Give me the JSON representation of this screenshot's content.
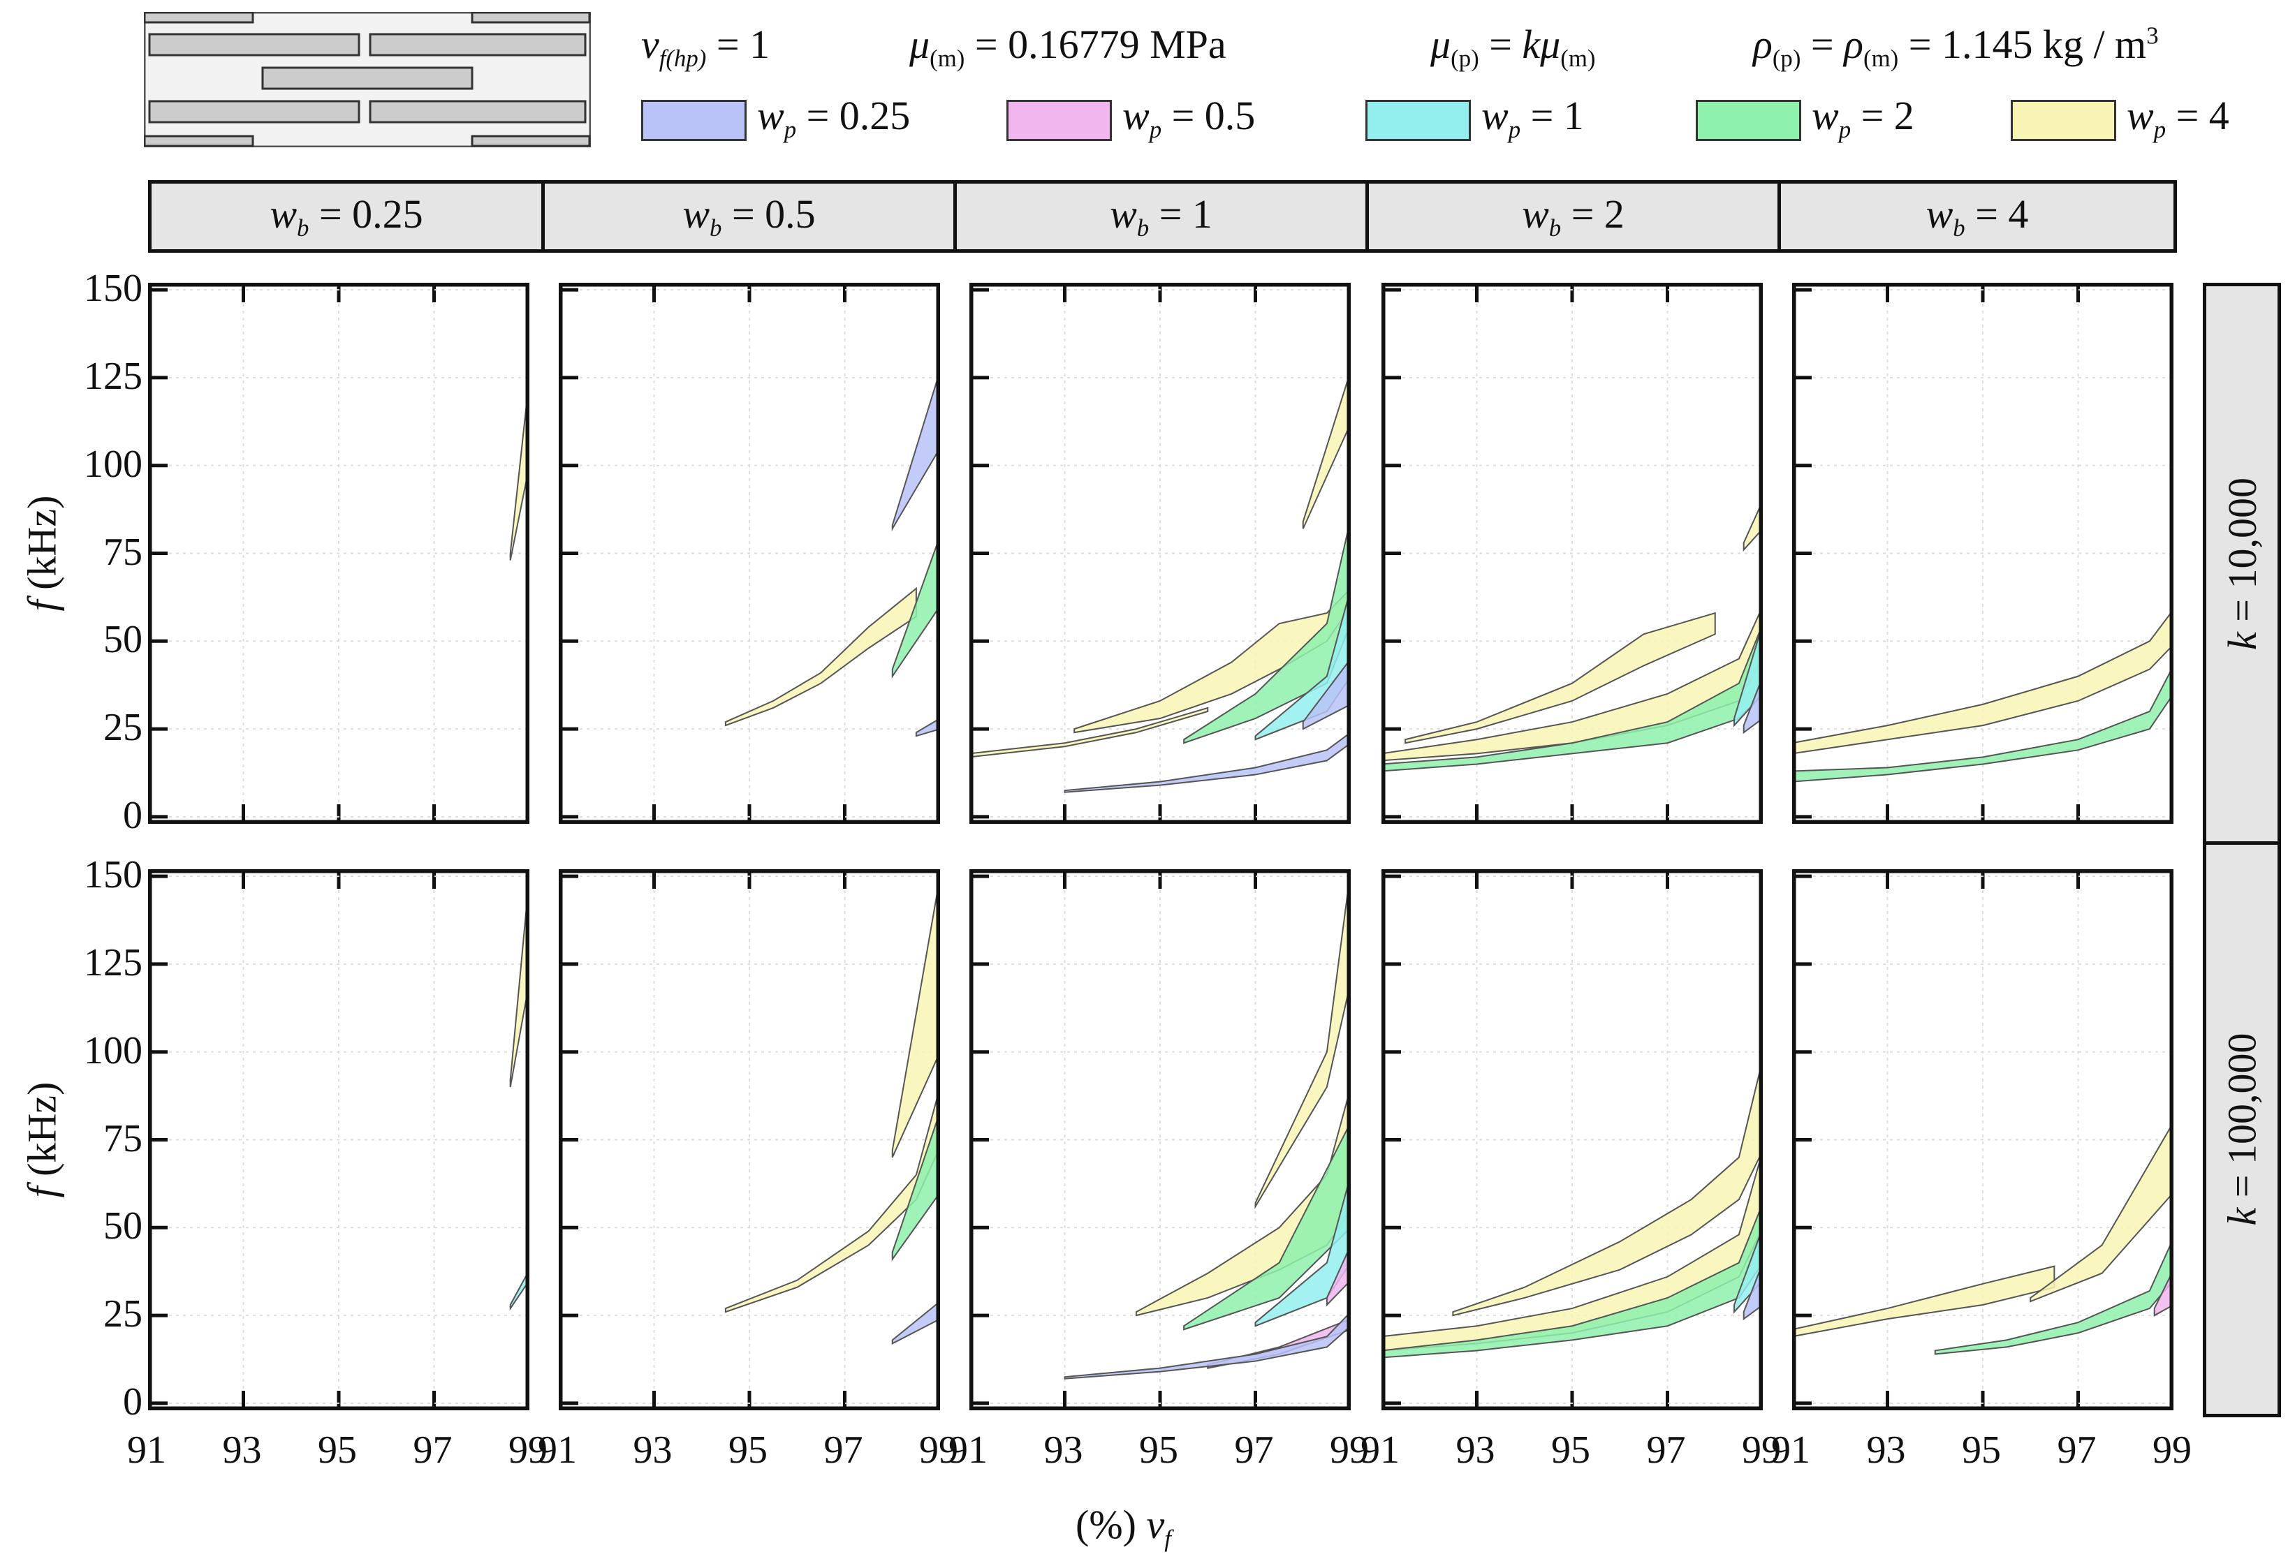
{
  "legend": {
    "params": [
      {
        "sym": "v",
        "sub": "f(hp)",
        "rest": " = 1"
      },
      {
        "sym": "μ",
        "sub": "(m)",
        "rest": " = 0.16779 MPa"
      },
      {
        "sym": "μ",
        "sub": "(p)",
        "rest": " = ",
        "sym2": "kμ",
        "sub2": "(m)"
      },
      {
        "sym": "ρ",
        "sub": "(p)",
        "rest": " = ",
        "sym2": "ρ",
        "sub2": "(m)",
        "rest2": " = 1.145 kg / m",
        "sup": "3"
      }
    ],
    "entries": [
      {
        "sym": "w",
        "sub": "p",
        "rest": " = 0.25",
        "color": "#b9c3f7"
      },
      {
        "sym": "w",
        "sub": "p",
        "rest": " = 0.5",
        "color": "#f1b6ee"
      },
      {
        "sym": "w",
        "sub": "p",
        "rest": " = 1",
        "color": "#93eeee"
      },
      {
        "sym": "w",
        "sub": "p",
        "rest": " = 2",
        "color": "#8ef1ac"
      },
      {
        "sym": "w",
        "sub": "p",
        "rest": " = 4",
        "color": "#f8f4b4"
      }
    ]
  },
  "chart_data": {
    "type": "area",
    "xlabel": {
      "prefix": "(%) ",
      "sym": "v",
      "sub": "f"
    },
    "ylabel": {
      "sym": "f",
      "rest": " (kHz)"
    },
    "xlim": [
      91,
      99
    ],
    "ylim": [
      -2,
      152
    ],
    "xticks": [
      91,
      93,
      95,
      97,
      99
    ],
    "yticks": [
      0,
      25,
      50,
      75,
      100,
      125,
      150
    ],
    "grid": true,
    "columns": [
      {
        "sym": "w",
        "sub": "b",
        "rest": " = 0.25"
      },
      {
        "sym": "w",
        "sub": "b",
        "rest": " = 0.5"
      },
      {
        "sym": "w",
        "sub": "b",
        "rest": " = 1"
      },
      {
        "sym": "w",
        "sub": "b",
        "rest": " = 2"
      },
      {
        "sym": "w",
        "sub": "b",
        "rest": " = 4"
      }
    ],
    "rows": [
      {
        "sym": "k",
        "rest": " = 10,000"
      },
      {
        "sym": "k",
        "rest": " = 100,000"
      }
    ],
    "panels": [
      [
        [
          {
            "wp": 4,
            "x": [
              98.6,
              99
            ],
            "lo": [
              73,
              100
            ],
            "hi": [
              75,
              125
            ]
          }
        ],
        [
          {
            "wp": 4,
            "x": [
              94.5,
              95.5,
              96.5,
              97.5,
              98.5
            ],
            "lo": [
              26,
              31,
              38,
              48,
              57
            ],
            "hi": [
              27,
              33,
              41,
              54,
              65
            ]
          },
          {
            "wp": 0.25,
            "x": [
              98,
              99
            ],
            "lo": [
              82,
              105
            ],
            "hi": [
              83,
              127
            ]
          },
          {
            "wp": 2,
            "x": [
              98,
              99
            ],
            "lo": [
              40,
              60
            ],
            "hi": [
              42,
              80
            ]
          },
          {
            "wp": 0.25,
            "x": [
              98.5,
              99
            ],
            "lo": [
              23,
              25
            ],
            "hi": [
              24,
              28
            ]
          }
        ],
        [
          {
            "wp": 4,
            "x": [
              98,
              99
            ],
            "lo": [
              82,
              112
            ],
            "hi": [
              84,
              127
            ]
          },
          {
            "wp": 4,
            "x": [
              93.2,
              95,
              96.5,
              97.5,
              98.5,
              99
            ],
            "lo": [
              24,
              28,
              35,
              42,
              50,
              60
            ],
            "hi": [
              25,
              33,
              44,
              55,
              58,
              65
            ]
          },
          {
            "wp": 4,
            "x": [
              91,
              93,
              94.5,
              96
            ],
            "lo": [
              17,
              20,
              24,
              30
            ],
            "hi": [
              18,
              21,
              25,
              31
            ]
          },
          {
            "wp": 2,
            "x": [
              95.5,
              97,
              98.5,
              99
            ],
            "lo": [
              21,
              28,
              38,
              55
            ],
            "hi": [
              22,
              35,
              55,
              85
            ]
          },
          {
            "wp": 1,
            "x": [
              97,
              98.5,
              99
            ],
            "lo": [
              22,
              30,
              40
            ],
            "hi": [
              23,
              40,
              65
            ]
          },
          {
            "wp": 0.25,
            "x": [
              98,
              99
            ],
            "lo": [
              25,
              32
            ],
            "hi": [
              27,
              45
            ]
          },
          {
            "wp": 0.25,
            "x": [
              93,
              95,
              97,
              98.5,
              99
            ],
            "lo": [
              7,
              9,
              12,
              16,
              21
            ],
            "hi": [
              7.5,
              10,
              14,
              19,
              24
            ]
          }
        ],
        [
          {
            "wp": 4,
            "x": [
              98.6,
              99
            ],
            "lo": [
              76,
              82
            ],
            "hi": [
              78,
              90
            ]
          },
          {
            "wp": 4,
            "x": [
              91.5,
              93,
              95,
              96.5,
              98
            ],
            "lo": [
              21,
              25,
              33,
              43,
              52
            ],
            "hi": [
              22,
              27,
              38,
              52,
              58
            ]
          },
          {
            "wp": 4,
            "x": [
              91,
              93,
              95,
              97,
              98.5,
              99
            ],
            "lo": [
              16,
              18,
              21,
              26,
              33,
              45
            ],
            "hi": [
              18,
              22,
              27,
              35,
              45,
              60
            ]
          },
          {
            "wp": 2,
            "x": [
              91,
              93,
              95,
              97,
              98.5,
              99
            ],
            "lo": [
              13,
              15,
              18,
              21,
              28,
              35
            ],
            "hi": [
              15,
              17,
              21,
              27,
              38,
              55
            ]
          },
          {
            "wp": 1,
            "x": [
              98.4,
              99
            ],
            "lo": [
              26,
              35
            ],
            "hi": [
              28,
              55
            ]
          },
          {
            "wp": 0.25,
            "x": [
              98.6,
              99
            ],
            "lo": [
              24,
              28
            ],
            "hi": [
              26,
              40
            ]
          }
        ],
        [
          {
            "wp": 4,
            "x": [
              91,
              93,
              95,
              97,
              98.5,
              99
            ],
            "lo": [
              18,
              22,
              26,
              33,
              42,
              49
            ],
            "hi": [
              21,
              26,
              32,
              40,
              50,
              59
            ]
          },
          {
            "wp": 2,
            "x": [
              91,
              93,
              95,
              97,
              98.5,
              99
            ],
            "lo": [
              10,
              12,
              15,
              19,
              25,
              35
            ],
            "hi": [
              13,
              14,
              17,
              22,
              30,
              43
            ]
          }
        ]
      ],
      [
        [
          {
            "wp": 4,
            "x": [
              98.6,
              99
            ],
            "lo": [
              90,
              120
            ],
            "hi": [
              92,
              150
            ]
          },
          {
            "wp": 1,
            "x": [
              98.6,
              99
            ],
            "lo": [
              27,
              35
            ],
            "hi": [
              28,
              38
            ]
          }
        ],
        [
          {
            "wp": 4,
            "x": [
              94.5,
              96,
              97.5,
              98.5,
              99
            ],
            "lo": [
              26,
              33,
              45,
              58,
              73
            ],
            "hi": [
              27,
              35,
              49,
              65,
              90
            ]
          },
          {
            "wp": 4,
            "x": [
              98,
              99
            ],
            "lo": [
              70,
              100
            ],
            "hi": [
              72,
              150
            ]
          },
          {
            "wp": 2,
            "x": [
              98,
              99
            ],
            "lo": [
              41,
              60
            ],
            "hi": [
              43,
              83
            ]
          },
          {
            "wp": 0.25,
            "x": [
              98,
              99
            ],
            "lo": [
              17,
              24
            ],
            "hi": [
              18,
              29
            ]
          }
        ],
        [
          {
            "wp": 4,
            "x": [
              97,
              98.5,
              99
            ],
            "lo": [
              56,
              90,
              120
            ],
            "hi": [
              57,
              100,
              152
            ]
          },
          {
            "wp": 4,
            "x": [
              94.5,
              96,
              97.5,
              98.5,
              99
            ],
            "lo": [
              25,
              30,
              38,
              45,
              55
            ],
            "hi": [
              26,
              37,
              50,
              65,
              90
            ]
          },
          {
            "wp": 2,
            "x": [
              95.5,
              97.5,
              99
            ],
            "lo": [
              21,
              30,
              50
            ],
            "hi": [
              22,
              40,
              80
            ]
          },
          {
            "wp": 1,
            "x": [
              97,
              98.5,
              99
            ],
            "lo": [
              22,
              30,
              40
            ],
            "hi": [
              23,
              40,
              65
            ]
          },
          {
            "wp": 0.5,
            "x": [
              98.5,
              99
            ],
            "lo": [
              28,
              35
            ],
            "hi": [
              30,
              45
            ]
          },
          {
            "wp": 0.5,
            "x": [
              96,
              97.5,
              99
            ],
            "lo": [
              10,
              14,
              21
            ],
            "hi": [
              11,
              16,
              24
            ]
          },
          {
            "wp": 0.25,
            "x": [
              93,
              95,
              97,
              98.5,
              99
            ],
            "lo": [
              7,
              9,
              12,
              16,
              22
            ],
            "hi": [
              7.5,
              10,
              14,
              19,
              26
            ]
          }
        ],
        [
          {
            "wp": 4,
            "x": [
              92.5,
              94,
              96,
              97.5,
              98.5,
              99
            ],
            "lo": [
              25,
              30,
              38,
              48,
              58,
              72
            ],
            "hi": [
              26,
              33,
              46,
              58,
              70,
              98
            ]
          },
          {
            "wp": 4,
            "x": [
              91,
              93,
              95,
              97,
              98.5,
              99
            ],
            "lo": [
              15,
              17,
              20,
              26,
              36,
              50
            ],
            "hi": [
              19,
              22,
              27,
              36,
              48,
              72
            ]
          },
          {
            "wp": 2,
            "x": [
              91,
              93,
              95,
              97,
              98.5,
              99
            ],
            "lo": [
              13,
              15,
              18,
              22,
              30,
              40
            ],
            "hi": [
              15,
              18,
              22,
              30,
              40,
              57
            ]
          },
          {
            "wp": 1,
            "x": [
              98.4,
              99
            ],
            "lo": [
              26,
              35
            ],
            "hi": [
              28,
              50
            ]
          },
          {
            "wp": 0.25,
            "x": [
              98.6,
              99
            ],
            "lo": [
              24,
              28
            ],
            "hi": [
              26,
              40
            ]
          }
        ],
        [
          {
            "wp": 4,
            "x": [
              91,
              93,
              95,
              96.5
            ],
            "lo": [
              19,
              24,
              28,
              33
            ],
            "hi": [
              21,
              27,
              34,
              39
            ]
          },
          {
            "wp": 4,
            "x": [
              96,
              97.5,
              99
            ],
            "lo": [
              29,
              37,
              60
            ],
            "hi": [
              30,
              45,
              80
            ]
          },
          {
            "wp": 2,
            "x": [
              94,
              95.5,
              97,
              98.5,
              99
            ],
            "lo": [
              14,
              16,
              20,
              27,
              35
            ],
            "hi": [
              15,
              18,
              23,
              32,
              47
            ]
          },
          {
            "wp": 0.5,
            "x": [
              98.6,
              99
            ],
            "lo": [
              25,
              28
            ],
            "hi": [
              27,
              38
            ]
          }
        ]
      ]
    ]
  }
}
